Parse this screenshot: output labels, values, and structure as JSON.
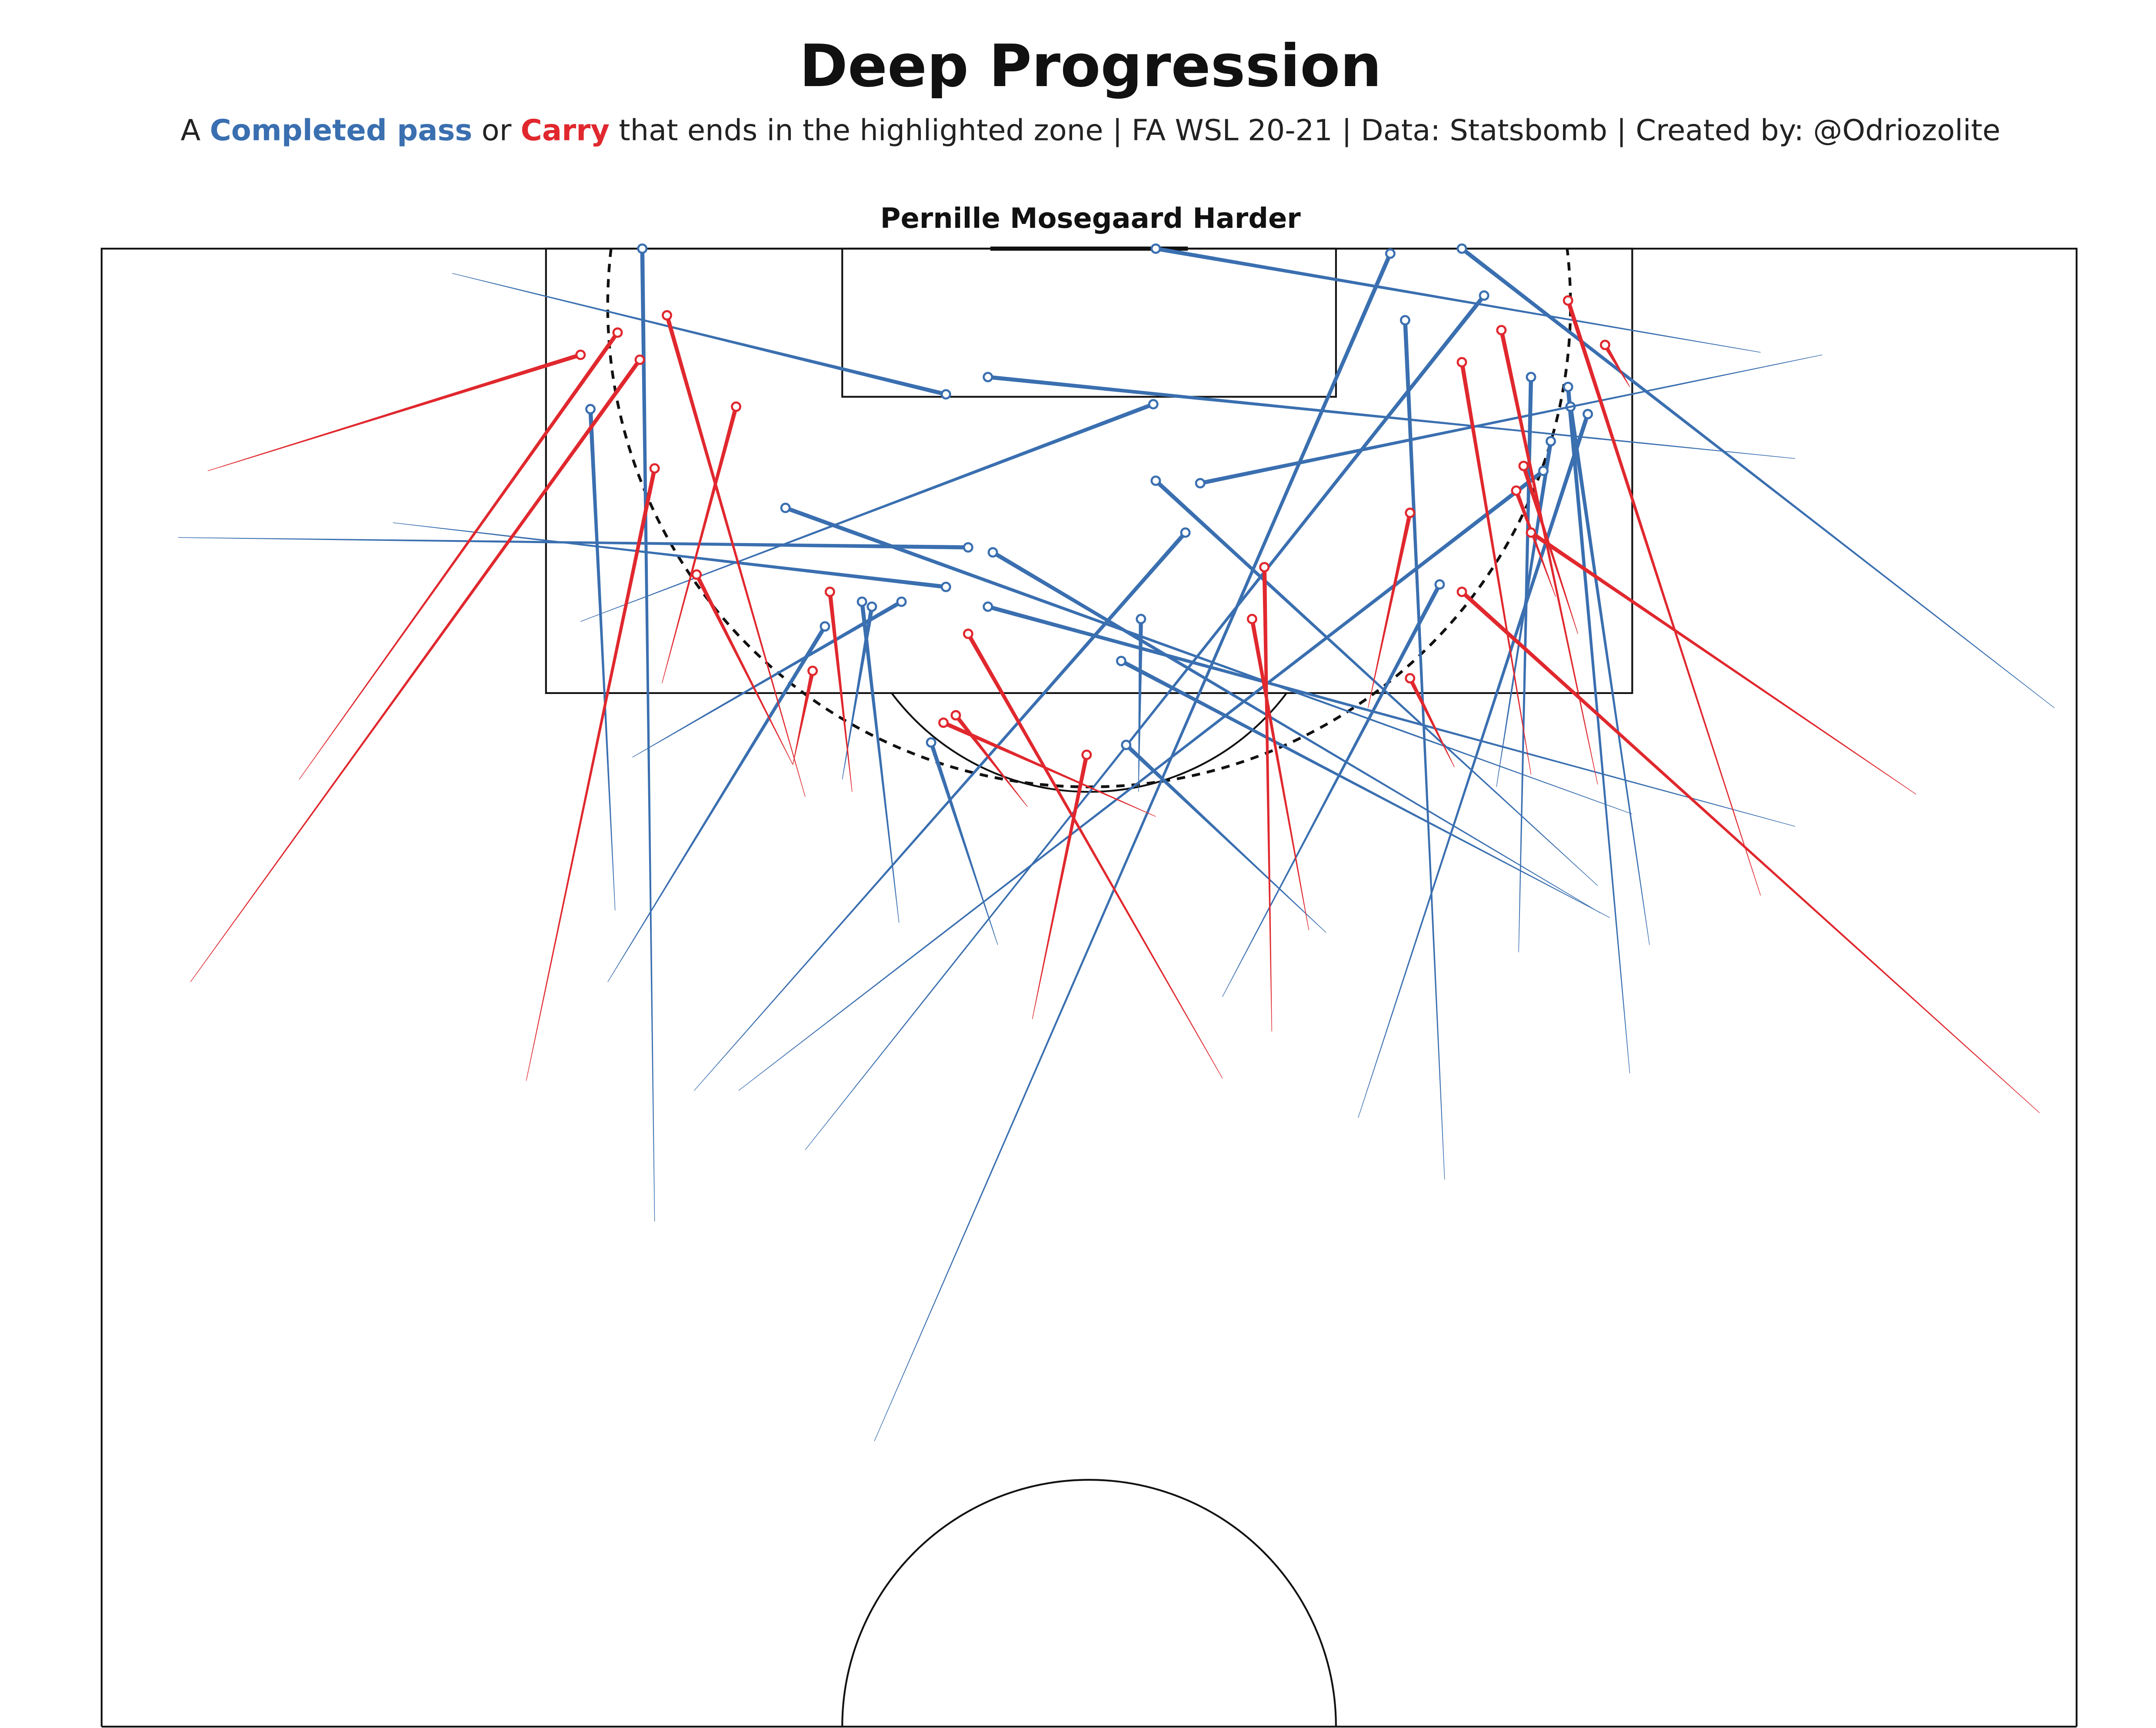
{
  "header": {
    "title": "Deep Progression",
    "subtitle": {
      "prefix": "A ",
      "pass_label": "Completed pass",
      "mid": " or ",
      "carry_label": "Carry",
      "suffix": " that ends in the highlighted zone  |  FA WSL 20-21  |  Data: Statsbomb  |  Created by: @Odriozolite"
    },
    "player": "Pernille Mosegaard Harder"
  },
  "colors": {
    "pass": "#3a6fb0",
    "carry": "#e0282e",
    "lines": "#111111",
    "background": "#ffffff"
  },
  "chart_data": {
    "type": "pitch-arrows",
    "pitch": "statsbomb 120x80, attacking half, vertical orientation",
    "highlighted_zone": {
      "shape": "circle arc",
      "center": [
        117.7,
        40
      ],
      "radius": 19.5,
      "style": "dashed"
    },
    "legend": "in subtitle",
    "passes": [
      {
        "start": [
          119.0,
          14.2
        ],
        "end": [
          114.1,
          34.2
        ]
      },
      {
        "start": [
          80.6,
          22.4
        ],
        "end": [
          120.0,
          21.9
        ]
      },
      {
        "start": [
          115.8,
          67.2
        ],
        "end": [
          120.0,
          42.7
        ]
      },
      {
        "start": [
          101.4,
          79.1
        ],
        "end": [
          120.0,
          55.1
        ]
      },
      {
        "start": [
          71.7,
          31.3
        ],
        "end": [
          119.8,
          52.2
        ]
      },
      {
        "start": [
          83.5,
          28.5
        ],
        "end": [
          118.1,
          56.0
        ]
      },
      {
        "start": [
          82.3,
          54.4
        ],
        "end": [
          117.1,
          52.8
        ]
      },
      {
        "start": [
          91.5,
          57.4
        ],
        "end": [
          114.8,
          57.9
        ]
      },
      {
        "start": [
          86.6,
          61.9
        ],
        "end": [
          114.4,
          59.4
        ]
      },
      {
        "start": [
          91.8,
          62.7
        ],
        "end": [
          113.6,
          59.5
        ]
      },
      {
        "start": [
          111.5,
          68.6
        ],
        "end": [
          114.8,
          35.9
        ]
      },
      {
        "start": [
          104.9,
          19.4
        ],
        "end": [
          113.7,
          42.6
        ]
      },
      {
        "start": [
          115.7,
          69.7
        ],
        "end": [
          110.5,
          44.5
        ]
      },
      {
        "start": [
          94.2,
          60.6
        ],
        "end": [
          110.6,
          42.7
        ]
      },
      {
        "start": [
          98.2,
          56.5
        ],
        "end": [
          112.2,
          58.7
        ]
      },
      {
        "start": [
          85.9,
          25.8
        ],
        "end": [
          111.0,
          58.4
        ]
      },
      {
        "start": [
          93.2,
          20.8
        ],
        "end": [
          113.5,
          19.8
        ]
      },
      {
        "start": [
          97.1,
          62.0
        ],
        "end": [
          109.5,
          27.7
        ]
      },
      {
        "start": [
          108.3,
          3.1
        ],
        "end": [
          107.9,
          35.1
        ]
      },
      {
        "start": [
          93.1,
          60.7
        ],
        "end": [
          107.7,
          36.1
        ]
      },
      {
        "start": [
          85.9,
          24.0
        ],
        "end": [
          108.5,
          43.9
        ]
      },
      {
        "start": [
          108.9,
          11.8
        ],
        "end": [
          106.3,
          34.2
        ]
      },
      {
        "start": [
          96.6,
          68.6
        ],
        "end": [
          105.5,
          35.9
        ]
      },
      {
        "start": [
          92.7,
          32.3
        ],
        "end": [
          105.7,
          30.8
        ]
      },
      {
        "start": [
          99.4,
          21.5
        ],
        "end": [
          105.7,
          32.4
        ]
      },
      {
        "start": [
          90.3,
          20.5
        ],
        "end": [
          104.7,
          29.3
        ]
      },
      {
        "start": [
          98.0,
          42.0
        ],
        "end": [
          105.0,
          42.1
        ]
      },
      {
        "start": [
          92.9,
          61.1
        ],
        "end": [
          103.3,
          41.3
        ]
      },
      {
        "start": [
          92.3,
          49.6
        ],
        "end": [
          99.9,
          41.5
        ]
      },
      {
        "start": [
          91.8,
          36.3
        ],
        "end": [
          100.0,
          33.6
        ]
      },
      {
        "start": [
          89.7,
          45.4
        ],
        "end": [
          106.4,
          54.2
        ]
      },
      {
        "start": [
          84.8,
          50.9
        ],
        "end": [
          113.3,
          60.2
        ]
      },
      {
        "start": [
          98.5,
          30.0
        ],
        "end": [
          105.5,
          31.2
        ]
      }
    ],
    "carries": [
      {
        "start": [
          111.0,
          4.3
        ],
        "end": [
          115.7,
          19.4
        ]
      },
      {
        "start": [
          98.5,
          8.0
        ],
        "end": [
          116.6,
          20.9
        ]
      },
      {
        "start": [
          90.3,
          3.6
        ],
        "end": [
          115.5,
          21.8
        ]
      },
      {
        "start": [
          97.8,
          28.5
        ],
        "end": [
          117.3,
          22.9
        ]
      },
      {
        "start": [
          102.4,
          22.7
        ],
        "end": [
          113.6,
          25.7
        ]
      },
      {
        "start": [
          86.3,
          17.2
        ],
        "end": [
          111.1,
          22.4
        ]
      },
      {
        "start": [
          99.1,
          28.0
        ],
        "end": [
          106.8,
          24.1
        ]
      },
      {
        "start": [
          98.0,
          30.4
        ],
        "end": [
          106.1,
          29.5
        ]
      },
      {
        "start": [
          99.1,
          28.0
        ],
        "end": [
          102.9,
          28.8
        ]
      },
      {
        "start": [
          86.4,
          45.4
        ],
        "end": [
          104.4,
          35.1
        ]
      },
      {
        "start": [
          97.4,
          37.5
        ],
        "end": [
          101.1,
          34.6
        ]
      },
      {
        "start": [
          97.0,
          42.7
        ],
        "end": [
          100.8,
          34.1
        ]
      },
      {
        "start": [
          88.8,
          37.7
        ],
        "end": [
          99.5,
          39.9
        ]
      },
      {
        "start": [
          88.3,
          47.4
        ],
        "end": [
          107.1,
          47.1
        ]
      },
      {
        "start": [
          92.4,
          48.9
        ],
        "end": [
          105.0,
          46.6
        ]
      },
      {
        "start": [
          101.4,
          51.3
        ],
        "end": [
          109.3,
          53.0
        ]
      },
      {
        "start": [
          99.0,
          54.8
        ],
        "end": [
          102.6,
          53.0
        ]
      },
      {
        "start": [
          98.7,
          57.9
        ],
        "end": [
          115.4,
          55.1
        ]
      },
      {
        "start": [
          98.3,
          60.6
        ],
        "end": [
          116.7,
          56.7
        ]
      },
      {
        "start": [
          93.8,
          67.2
        ],
        "end": [
          117.9,
          59.4
        ]
      },
      {
        "start": [
          114.4,
          61.9
        ],
        "end": [
          116.1,
          60.9
        ]
      },
      {
        "start": [
          104.4,
          59.8
        ],
        "end": [
          111.2,
          57.6
        ]
      },
      {
        "start": [
          105.9,
          58.9
        ],
        "end": [
          110.2,
          57.3
        ]
      },
      {
        "start": [
          97.9,
          73.5
        ],
        "end": [
          108.5,
          57.9
        ]
      },
      {
        "start": [
          85.0,
          78.5
        ],
        "end": [
          106.1,
          55.1
        ]
      }
    ]
  }
}
